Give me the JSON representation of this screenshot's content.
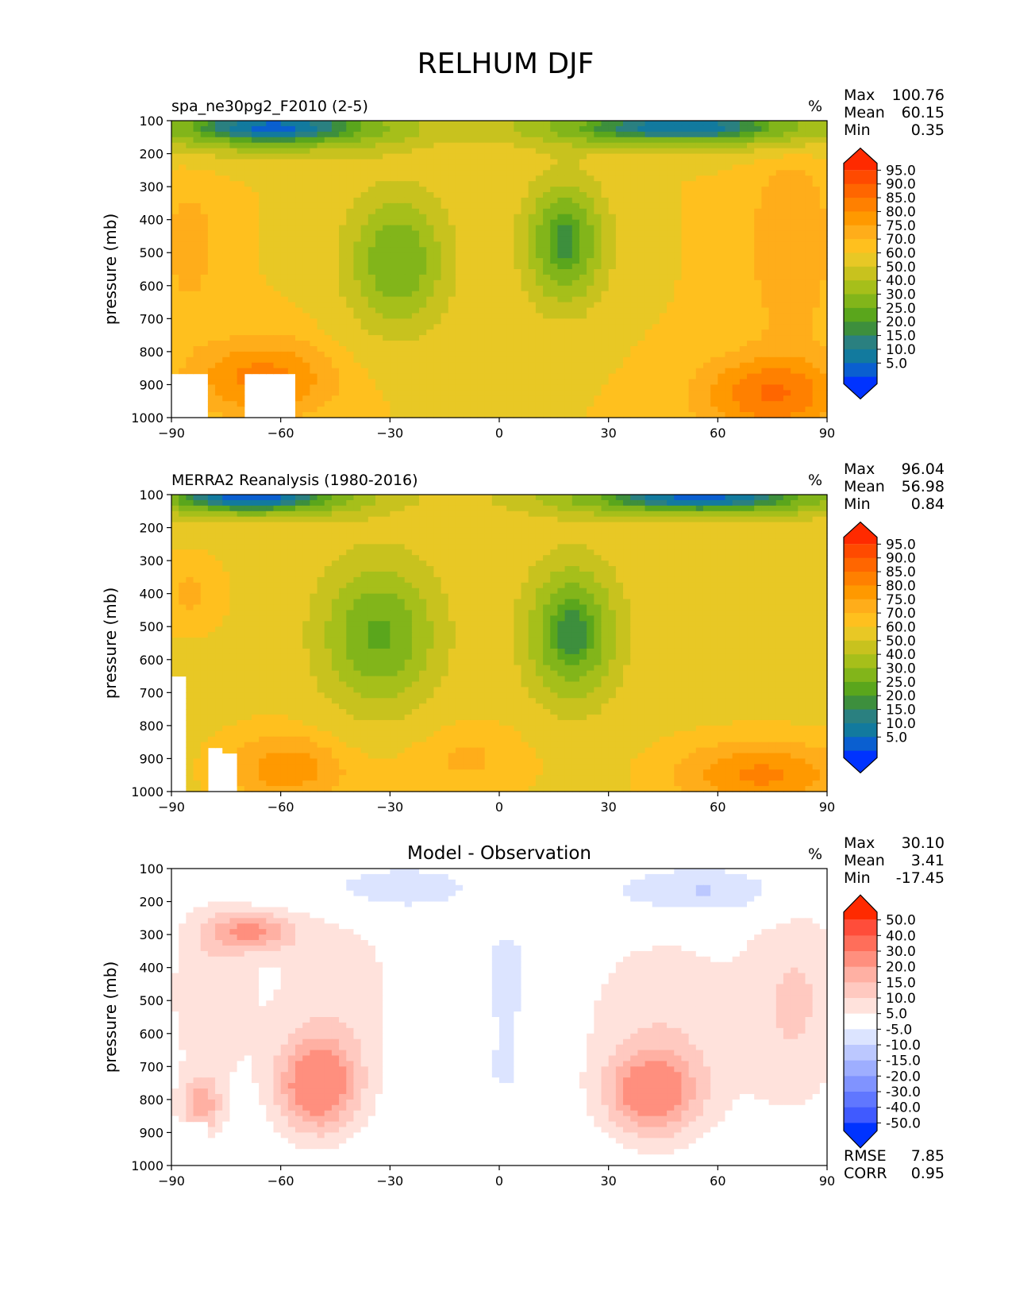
{
  "figure": {
    "title": "RELHUM DJF"
  },
  "chart_data": [
    {
      "type": "heatmap",
      "title": "spa_ne30pg2_F2010 (2-5)",
      "units": "%",
      "ylabel": "pressure (mb)",
      "xlim": [
        -90,
        90
      ],
      "ylim": [
        1000,
        100
      ],
      "x_ticks": [
        "−90",
        "−60",
        "−30",
        "0",
        "30",
        "60",
        "90"
      ],
      "y_ticks": [
        "100",
        "200",
        "300",
        "400",
        "500",
        "600",
        "700",
        "800",
        "900",
        "1000"
      ],
      "stats": [
        {
          "label": "Max",
          "value": "100.76"
        },
        {
          "label": "Mean",
          "value": "60.15"
        },
        {
          "label": "Min",
          "value": "0.35"
        }
      ],
      "colorbar": {
        "levels": [
          "95.0",
          "90.0",
          "85.0",
          "80.0",
          "75.0",
          "70.0",
          "60.0",
          "50.0",
          "40.0",
          "30.0",
          "25.0",
          "20.0",
          "15.0",
          "10.0",
          "5.0"
        ],
        "colors": [
          "#ff2a00",
          "#ff4a00",
          "#ff6600",
          "#ff8000",
          "#ff9900",
          "#ffad1a",
          "#ffc01e",
          "#e8c825",
          "#c8c21e",
          "#a6bf1a",
          "#82b51a",
          "#5aa61c",
          "#3d8f3d",
          "#2a8080",
          "#127a9e",
          "#0a5fd0",
          "#0033ff"
        ]
      },
      "field": {
        "base": 70,
        "features": [
          {
            "x": -62,
            "y": 120,
            "sx": 35,
            "sy": 70,
            "a": -62
          },
          {
            "x": 50,
            "y": 120,
            "sx": 42,
            "sy": 60,
            "a": -60
          },
          {
            "x": -28,
            "y": 525,
            "sx": 14,
            "sy": 210,
            "a": -40
          },
          {
            "x": 18,
            "y": 470,
            "sx": 11,
            "sy": 190,
            "a": -48
          },
          {
            "x": -65,
            "y": 880,
            "sx": 20,
            "sy": 120,
            "a": 17
          },
          {
            "x": 75,
            "y": 930,
            "sx": 20,
            "sy": 120,
            "a": 20
          },
          {
            "x": 80,
            "y": 480,
            "sx": 12,
            "sy": 300,
            "a": 10
          },
          {
            "x": -85,
            "y": 480,
            "sx": 8,
            "sy": 200,
            "a": 8
          }
        ],
        "masks": [
          [
            -90,
            -81,
            865,
            1000
          ],
          [
            -70,
            -57,
            865,
            1000
          ]
        ]
      }
    },
    {
      "type": "heatmap",
      "title": "MERRA2 Reanalysis (1980-2016)",
      "units": "%",
      "ylabel": "pressure (mb)",
      "xlim": [
        -90,
        90
      ],
      "ylim": [
        1000,
        100
      ],
      "x_ticks": [
        "−90",
        "−60",
        "−30",
        "0",
        "30",
        "60",
        "90"
      ],
      "y_ticks": [
        "100",
        "200",
        "300",
        "400",
        "500",
        "600",
        "700",
        "800",
        "900",
        "1000"
      ],
      "stats": [
        {
          "label": "Max",
          "value": "96.04"
        },
        {
          "label": "Mean",
          "value": "56.98"
        },
        {
          "label": "Min",
          "value": "0.84"
        }
      ],
      "colorbar": {
        "levels": [
          "95.0",
          "90.0",
          "85.0",
          "80.0",
          "75.0",
          "70.0",
          "60.0",
          "50.0",
          "40.0",
          "30.0",
          "25.0",
          "20.0",
          "15.0",
          "10.0",
          "5.0"
        ],
        "colors": [
          "#ff2a00",
          "#ff4a00",
          "#ff6600",
          "#ff8000",
          "#ff9900",
          "#ffad1a",
          "#ffc01e",
          "#e8c825",
          "#c8c21e",
          "#a6bf1a",
          "#82b51a",
          "#5aa61c",
          "#3d8f3d",
          "#2a8080",
          "#127a9e",
          "#0a5fd0",
          "#0033ff"
        ]
      },
      "field": {
        "base": 68,
        "features": [
          {
            "x": -68,
            "y": 110,
            "sx": 30,
            "sy": 55,
            "a": -62
          },
          {
            "x": 55,
            "y": 110,
            "sx": 40,
            "sy": 55,
            "a": -60
          },
          {
            "x": -33,
            "y": 525,
            "sx": 16,
            "sy": 220,
            "a": -40
          },
          {
            "x": 20,
            "y": 520,
            "sx": 12,
            "sy": 200,
            "a": -48
          },
          {
            "x": -58,
            "y": 930,
            "sx": 18,
            "sy": 120,
            "a": 15
          },
          {
            "x": 72,
            "y": 950,
            "sx": 25,
            "sy": 110,
            "a": 18
          },
          {
            "x": -85,
            "y": 400,
            "sx": 10,
            "sy": 120,
            "a": 8
          },
          {
            "x": -10,
            "y": 900,
            "sx": 20,
            "sy": 120,
            "a": 8
          }
        ],
        "masks": [
          [
            -90,
            -86,
            650,
            1000
          ],
          [
            -80,
            -77,
            870,
            1000
          ],
          [
            -76,
            -73,
            880,
            1000
          ]
        ]
      }
    },
    {
      "type": "heatmap",
      "title": "Model - Observation",
      "units": "%",
      "ylabel": "pressure (mb)",
      "xlim": [
        -90,
        90
      ],
      "ylim": [
        1000,
        100
      ],
      "x_ticks": [
        "−90",
        "−60",
        "−30",
        "0",
        "30",
        "60",
        "90"
      ],
      "y_ticks": [
        "100",
        "200",
        "300",
        "400",
        "500",
        "600",
        "700",
        "800",
        "900",
        "1000"
      ],
      "stats": [
        {
          "label": "Max",
          "value": "30.10"
        },
        {
          "label": "Mean",
          "value": "3.41"
        },
        {
          "label": "Min",
          "value": "-17.45"
        }
      ],
      "metrics": [
        {
          "label": "RMSE",
          "value": "7.85"
        },
        {
          "label": "CORR",
          "value": "0.95"
        }
      ],
      "colorbar": {
        "levels": [
          "50.0",
          "40.0",
          "30.0",
          "20.0",
          "15.0",
          "10.0",
          "5.0",
          "-5.0",
          "-10.0",
          "-15.0",
          "-20.0",
          "-30.0",
          "-40.0",
          "-50.0"
        ],
        "colors": [
          "#ff2a00",
          "#ff4d3a",
          "#ff6e5a",
          "#ff8f7e",
          "#ffb0a3",
          "#ffc9c0",
          "#ffe2dc",
          "#ffffff",
          "#dce4ff",
          "#bcc8ff",
          "#9eaeff",
          "#8093ff",
          "#6077ff",
          "#405aff",
          "#0033ff"
        ]
      },
      "field": {
        "base": 0,
        "features": [
          {
            "x": -50,
            "y": 760,
            "sx": 11,
            "sy": 140,
            "a": 25
          },
          {
            "x": 42,
            "y": 780,
            "sx": 12,
            "sy": 120,
            "a": 22
          },
          {
            "x": -68,
            "y": 290,
            "sx": 12,
            "sy": 60,
            "a": 18
          },
          {
            "x": -82,
            "y": 820,
            "sx": 6,
            "sy": 90,
            "a": 16
          },
          {
            "x": 82,
            "y": 500,
            "sx": 14,
            "sy": 350,
            "a": 10
          },
          {
            "x": -80,
            "y": 480,
            "sx": 12,
            "sy": 300,
            "a": 9
          },
          {
            "x": -45,
            "y": 500,
            "sx": 20,
            "sy": 350,
            "a": 8
          },
          {
            "x": 45,
            "y": 600,
            "sx": 25,
            "sy": 350,
            "a": 9
          },
          {
            "x": -30,
            "y": 160,
            "sx": 22,
            "sy": 70,
            "a": -11
          },
          {
            "x": 55,
            "y": 170,
            "sx": 28,
            "sy": 80,
            "a": -12
          },
          {
            "x": 2,
            "y": 420,
            "sx": 6,
            "sy": 140,
            "a": -10
          },
          {
            "x": 2,
            "y": 700,
            "sx": 10,
            "sy": 150,
            "a": -6
          }
        ],
        "masks": [
          [
            -90,
            -80,
            870,
            1000
          ],
          [
            -72,
            -64,
            870,
            1000
          ]
        ]
      }
    }
  ]
}
